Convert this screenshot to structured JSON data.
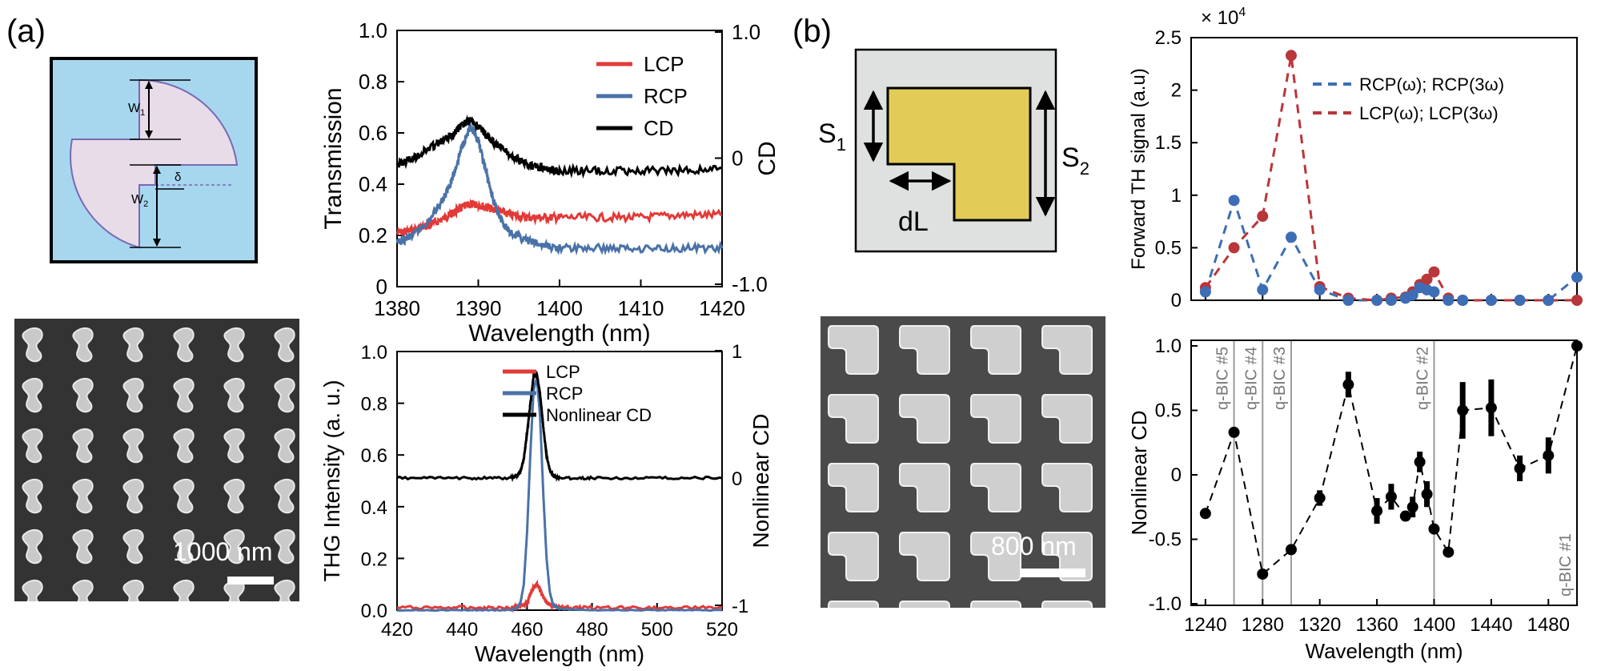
{
  "panel_labels": {
    "a": "(a)",
    "b": "(b)"
  },
  "schematic_a": {
    "w1": "W",
    "w1_sub": "1",
    "w2": "W",
    "w2_sub": "2",
    "delta": "δ"
  },
  "schematic_b": {
    "s1": "S",
    "s1_sub": "1",
    "s2": "S",
    "s2_sub": "2",
    "dl": "dL"
  },
  "sem_a": {
    "scale": "1000 nm"
  },
  "sem_b": {
    "scale": "800 nm"
  },
  "colors": {
    "lcp": "#e23a38",
    "rcp": "#4a72a8",
    "cd": "#000000",
    "rcp_dash": "#3d6db5",
    "lcp_dash": "#b9363a"
  },
  "chart_data": [
    {
      "id": "transmission",
      "type": "line",
      "title": "",
      "xlabel": "Wavelength (nm)",
      "ylabel": "Transmission",
      "y2label": "CD",
      "xlim": [
        1380,
        1420
      ],
      "ylim": [
        0,
        1.0
      ],
      "y2lim": [
        -1.0,
        1.0
      ],
      "xticks": [
        "1380",
        "1390",
        "1400",
        "1410",
        "1420"
      ],
      "yticks": [
        "0",
        "0.2",
        "0.4",
        "0.6",
        "0.8",
        "1.0"
      ],
      "y2ticks": [
        "-1.0",
        "0",
        "1.0"
      ],
      "legend": [
        "LCP",
        "RCP",
        "CD"
      ],
      "series": [
        {
          "name": "LCP",
          "x": [
            1380,
            1382,
            1384,
            1386,
            1387,
            1388,
            1389,
            1390,
            1391,
            1392,
            1394,
            1396,
            1398,
            1400,
            1405,
            1410,
            1415,
            1420
          ],
          "values": [
            0.21,
            0.22,
            0.24,
            0.27,
            0.29,
            0.31,
            0.32,
            0.32,
            0.31,
            0.3,
            0.28,
            0.27,
            0.27,
            0.27,
            0.27,
            0.27,
            0.28,
            0.28
          ]
        },
        {
          "name": "RCP",
          "x": [
            1380,
            1382,
            1384,
            1386,
            1387,
            1388,
            1389,
            1390,
            1391,
            1392,
            1393,
            1394,
            1396,
            1398,
            1400,
            1405,
            1410,
            1415,
            1420
          ],
          "values": [
            0.17,
            0.2,
            0.26,
            0.36,
            0.44,
            0.55,
            0.62,
            0.57,
            0.44,
            0.32,
            0.25,
            0.21,
            0.18,
            0.16,
            0.15,
            0.15,
            0.15,
            0.15,
            0.15
          ]
        },
        {
          "name": "CD",
          "axis": "right",
          "x": [
            1380,
            1382,
            1384,
            1386,
            1387,
            1388,
            1389,
            1390,
            1391,
            1392,
            1394,
            1396,
            1398,
            1400,
            1405,
            1410,
            1415,
            1420
          ],
          "values": [
            -0.05,
            0.0,
            0.08,
            0.15,
            0.2,
            0.26,
            0.3,
            0.25,
            0.18,
            0.12,
            0.02,
            -0.05,
            -0.08,
            -0.1,
            -0.1,
            -0.1,
            -0.1,
            -0.08
          ]
        }
      ]
    },
    {
      "id": "thg",
      "type": "line",
      "title": "",
      "xlabel": "Wavelength (nm)",
      "ylabel": "THG Intensity (a. u.)",
      "y2label": "Nonlinear CD",
      "xlim": [
        420,
        520
      ],
      "ylim": [
        0,
        1.0
      ],
      "y2lim": [
        -1,
        1
      ],
      "xticks": [
        "420",
        "440",
        "460",
        "480",
        "500",
        "520"
      ],
      "yticks": [
        "0.0",
        "0.2",
        "0.4",
        "0.6",
        "0.8",
        "1.0"
      ],
      "y2ticks": [
        "-1",
        "0",
        "1"
      ],
      "legend": [
        "LCP",
        "RCP",
        "Nonlinear CD"
      ],
      "series": [
        {
          "name": "LCP",
          "x": [
            420,
            440,
            455,
            458,
            460,
            461,
            462,
            463,
            464,
            465,
            466,
            468,
            470,
            480,
            500,
            520
          ],
          "values": [
            0.01,
            0.01,
            0.01,
            0.015,
            0.03,
            0.06,
            0.09,
            0.1,
            0.08,
            0.05,
            0.03,
            0.015,
            0.01,
            0.01,
            0.01,
            0.01
          ]
        },
        {
          "name": "RCP",
          "x": [
            420,
            440,
            455,
            457,
            458,
            459,
            460,
            461,
            462,
            463,
            464,
            465,
            466,
            467,
            468,
            470,
            480,
            500,
            520
          ],
          "values": [
            0.0,
            0.0,
            0.0,
            0.01,
            0.03,
            0.1,
            0.3,
            0.6,
            0.85,
            0.9,
            0.75,
            0.45,
            0.2,
            0.07,
            0.02,
            0.005,
            0.0,
            0.0,
            0.0
          ]
        },
        {
          "name": "Nonlinear CD",
          "axis": "right",
          "x": [
            420,
            440,
            455,
            457,
            458,
            459,
            460,
            461,
            462,
            463,
            464,
            465,
            466,
            467,
            468,
            470,
            480,
            500,
            520
          ],
          "values": [
            0.0,
            0.0,
            0.0,
            0.02,
            0.05,
            0.15,
            0.35,
            0.58,
            0.8,
            0.82,
            0.66,
            0.4,
            0.18,
            0.06,
            0.02,
            0.0,
            0.0,
            0.0,
            0.0
          ]
        }
      ]
    },
    {
      "id": "forward_th",
      "type": "line",
      "title": "",
      "xlabel": "",
      "ylabel": "Forward TH signal (a.u)",
      "multiplier": "× 10",
      "multiplier_exp": "4",
      "xlim": [
        1230,
        1500
      ],
      "ylim": [
        0,
        2.5
      ],
      "yticks": [
        "0",
        "0.5",
        "1",
        "1.5",
        "2",
        "2.5"
      ],
      "legend": [
        "RCP(ω); RCP(3ω)",
        "LCP(ω); LCP(3ω)"
      ],
      "series": [
        {
          "name": "RCP(ω); RCP(3ω)",
          "x": [
            1240,
            1260,
            1280,
            1300,
            1320,
            1340,
            1360,
            1370,
            1380,
            1385,
            1390,
            1395,
            1400,
            1410,
            1420,
            1440,
            1460,
            1480,
            1500
          ],
          "values": [
            0.08,
            0.95,
            0.1,
            0.6,
            0.1,
            0.0,
            0.0,
            0.0,
            0.02,
            0.05,
            0.12,
            0.1,
            0.08,
            0.0,
            0.0,
            0.0,
            0.0,
            0.0,
            0.22
          ]
        },
        {
          "name": "LCP(ω); LCP(3ω)",
          "x": [
            1240,
            1260,
            1280,
            1300,
            1320,
            1340,
            1360,
            1370,
            1380,
            1385,
            1390,
            1395,
            1400,
            1410,
            1420,
            1440,
            1460,
            1480,
            1500
          ],
          "values": [
            0.12,
            0.5,
            0.8,
            2.33,
            0.13,
            0.02,
            0.0,
            0.02,
            0.03,
            0.08,
            0.15,
            0.2,
            0.27,
            0.02,
            0.0,
            0.0,
            0.0,
            0.0,
            0.0
          ]
        }
      ]
    },
    {
      "id": "nonlinear_cd",
      "type": "scatter",
      "title": "",
      "xlabel": "Wavelength (nm)",
      "ylabel": "Nonlinear CD",
      "xlim": [
        1230,
        1500
      ],
      "ylim": [
        -1.0,
        1.0
      ],
      "xticks": [
        "1240",
        "1280",
        "1320",
        "1360",
        "1400",
        "1440",
        "1480"
      ],
      "yticks": [
        "-1.0",
        "-0.5",
        "0",
        "0.5",
        "1.0"
      ],
      "annotations": [
        {
          "x": 1260,
          "label": "q-BIC #5"
        },
        {
          "x": 1280,
          "label": "q-BIC #4"
        },
        {
          "x": 1300,
          "label": "q-BIC #3"
        },
        {
          "x": 1400,
          "label": "q-BIC #2"
        },
        {
          "x": 1500,
          "label": "q-BIC #1"
        }
      ],
      "x": [
        1240,
        1260,
        1280,
        1300,
        1320,
        1340,
        1360,
        1370,
        1380,
        1385,
        1390,
        1395,
        1400,
        1410,
        1420,
        1440,
        1460,
        1480,
        1500
      ],
      "values": [
        -0.3,
        0.33,
        -0.77,
        -0.58,
        -0.18,
        0.7,
        -0.28,
        -0.17,
        -0.32,
        -0.25,
        0.1,
        -0.15,
        -0.42,
        -0.6,
        0.5,
        0.52,
        0.05,
        0.15,
        1.0
      ],
      "errors": [
        0.02,
        0.02,
        0.02,
        0.02,
        0.06,
        0.1,
        0.1,
        0.1,
        0.04,
        0.08,
        0.08,
        0.1,
        0.02,
        0.02,
        0.22,
        0.22,
        0.1,
        0.14,
        0.02
      ]
    }
  ]
}
